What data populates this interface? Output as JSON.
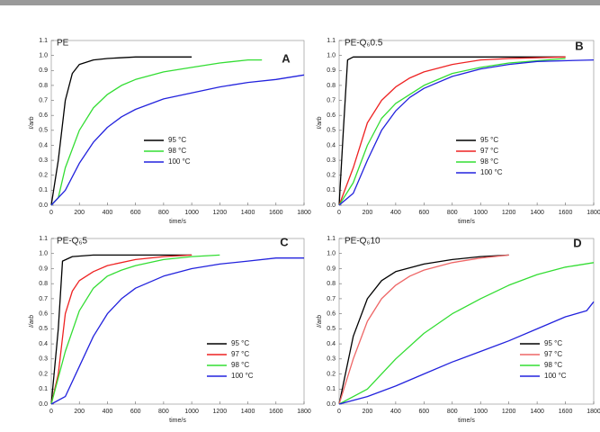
{
  "chart_data": [
    {
      "type": "line",
      "title": "PE",
      "panel_label": "A",
      "xlabel": "time/s",
      "ylabel": "I/arb",
      "xlim": [
        0,
        1800
      ],
      "xticks": [
        0,
        200,
        400,
        600,
        800,
        1000,
        1200,
        1400,
        1600,
        1800
      ],
      "ylim": [
        0,
        1.1
      ],
      "yticks": [
        {
          "value": 0,
          "label": "0.0"
        },
        0.1,
        0.2,
        0.3,
        0.4,
        0.5,
        0.6,
        0.7,
        0.8,
        0.9,
        {
          "value": 1,
          "label": "1.0"
        },
        1.1
      ],
      "series": [
        {
          "name": "95 °C",
          "color": "#000000",
          "x": [
            0,
            50,
            100,
            150,
            200,
            300,
            400,
            600,
            800,
            1000
          ],
          "values": [
            0,
            0.3,
            0.7,
            0.88,
            0.94,
            0.97,
            0.98,
            0.99,
            0.99,
            0.99
          ]
        },
        {
          "name": "98 °C",
          "color": "#33dd33",
          "x": [
            0,
            50,
            100,
            200,
            300,
            400,
            500,
            600,
            800,
            1000,
            1200,
            1400,
            1500
          ],
          "values": [
            0,
            0.05,
            0.25,
            0.5,
            0.65,
            0.74,
            0.8,
            0.84,
            0.89,
            0.92,
            0.95,
            0.97,
            0.97
          ]
        },
        {
          "name": "100 °C",
          "color": "#2222dd",
          "x": [
            0,
            100,
            200,
            300,
            400,
            500,
            600,
            800,
            1000,
            1200,
            1400,
            1600,
            1800
          ],
          "values": [
            0,
            0.1,
            0.28,
            0.42,
            0.52,
            0.59,
            0.64,
            0.71,
            0.75,
            0.79,
            0.82,
            0.84,
            0.87
          ]
        }
      ]
    },
    {
      "type": "line",
      "title": "PE-Q₆0.5",
      "panel_label": "B",
      "xlabel": "time/s",
      "ylabel": "I/arb",
      "xlim": [
        0,
        1800
      ],
      "xticks": [
        0,
        200,
        400,
        600,
        800,
        1000,
        1200,
        1400,
        1600,
        1800
      ],
      "ylim": [
        0,
        1.1
      ],
      "yticks": [
        {
          "value": 0,
          "label": "0.0"
        },
        0.1,
        0.2,
        0.3,
        0.4,
        0.5,
        0.6,
        0.7,
        0.8,
        0.9,
        {
          "value": 1,
          "label": "1.0"
        },
        1.1
      ],
      "series": [
        {
          "name": "95 °C",
          "color": "#000000",
          "x": [
            0,
            30,
            60,
            100,
            400,
            800,
            1200,
            1600
          ],
          "values": [
            0,
            0.5,
            0.97,
            0.99,
            0.99,
            0.99,
            0.99,
            0.99
          ]
        },
        {
          "name": "97 °C",
          "color": "#ee2222",
          "x": [
            0,
            100,
            200,
            300,
            400,
            500,
            600,
            800,
            1000,
            1200,
            1600
          ],
          "values": [
            0,
            0.25,
            0.55,
            0.7,
            0.79,
            0.85,
            0.89,
            0.94,
            0.97,
            0.98,
            0.99
          ]
        },
        {
          "name": "98 °C",
          "color": "#33dd33",
          "x": [
            0,
            100,
            200,
            300,
            400,
            600,
            800,
            1000,
            1200,
            1600
          ],
          "values": [
            0,
            0.15,
            0.4,
            0.58,
            0.68,
            0.8,
            0.88,
            0.92,
            0.95,
            0.98
          ]
        },
        {
          "name": "100 °C",
          "color": "#2222dd",
          "x": [
            0,
            100,
            200,
            300,
            400,
            500,
            600,
            800,
            1000,
            1200,
            1400,
            1800
          ],
          "values": [
            0,
            0.08,
            0.3,
            0.5,
            0.63,
            0.72,
            0.78,
            0.86,
            0.91,
            0.94,
            0.96,
            0.97
          ]
        }
      ]
    },
    {
      "type": "line",
      "title": "PE-Q₆5",
      "panel_label": "C",
      "xlabel": "time/s",
      "ylabel": "I/arb",
      "xlim": [
        0,
        1800
      ],
      "xticks": [
        0,
        200,
        400,
        600,
        800,
        1000,
        1200,
        1400,
        1600,
        1800
      ],
      "ylim": [
        0,
        1.1
      ],
      "yticks": [
        {
          "value": 0,
          "label": "0.0"
        },
        0.1,
        0.2,
        0.3,
        0.4,
        0.5,
        0.6,
        0.7,
        0.8,
        0.9,
        {
          "value": 1,
          "label": "1.0"
        },
        1.1
      ],
      "series": [
        {
          "name": "95 °C",
          "color": "#000000",
          "x": [
            0,
            50,
            80,
            150,
            300,
            1000
          ],
          "values": [
            0,
            0.5,
            0.95,
            0.98,
            0.99,
            0.99
          ]
        },
        {
          "name": "97 °C",
          "color": "#ee2222",
          "x": [
            0,
            50,
            100,
            150,
            200,
            300,
            400,
            600,
            800,
            1000
          ],
          "values": [
            0,
            0.2,
            0.6,
            0.75,
            0.82,
            0.88,
            0.92,
            0.96,
            0.98,
            0.99
          ]
        },
        {
          "name": "98 °C",
          "color": "#33dd33",
          "x": [
            0,
            100,
            200,
            300,
            400,
            500,
            600,
            800,
            1000,
            1200
          ],
          "values": [
            0,
            0.35,
            0.62,
            0.77,
            0.85,
            0.89,
            0.92,
            0.96,
            0.98,
            0.99
          ]
        },
        {
          "name": "100 °C",
          "color": "#2222dd",
          "x": [
            0,
            100,
            200,
            300,
            400,
            500,
            600,
            800,
            1000,
            1200,
            1400,
            1600,
            1800
          ],
          "values": [
            0,
            0.05,
            0.25,
            0.45,
            0.6,
            0.7,
            0.77,
            0.85,
            0.9,
            0.93,
            0.95,
            0.97,
            0.97
          ]
        }
      ]
    },
    {
      "type": "line",
      "title": "PE-Q₆10",
      "panel_label": "D",
      "xlabel": "time/s",
      "ylabel": "I/arb",
      "xlim": [
        0,
        1800
      ],
      "xticks": [
        0,
        200,
        400,
        600,
        800,
        1000,
        1200,
        1400,
        1600,
        1800
      ],
      "ylim": [
        0,
        1.1
      ],
      "yticks": [
        {
          "value": 0,
          "label": "0.0"
        },
        0.1,
        0.2,
        0.3,
        0.4,
        0.5,
        0.6,
        0.7,
        0.8,
        0.9,
        {
          "value": 1,
          "label": "1.0"
        },
        1.1
      ],
      "series": [
        {
          "name": "95 °C",
          "color": "#000000",
          "x": [
            0,
            100,
            200,
            300,
            400,
            600,
            800,
            1000,
            1200
          ],
          "values": [
            0,
            0.45,
            0.7,
            0.82,
            0.88,
            0.93,
            0.96,
            0.98,
            0.99
          ]
        },
        {
          "name": "97 °C",
          "color": "#ee6666",
          "x": [
            0,
            100,
            200,
            300,
            400,
            500,
            600,
            800,
            1000,
            1200
          ],
          "values": [
            0,
            0.3,
            0.55,
            0.7,
            0.79,
            0.85,
            0.89,
            0.94,
            0.97,
            0.99
          ]
        },
        {
          "name": "98 °C",
          "color": "#33dd33",
          "x": [
            0,
            200,
            400,
            600,
            800,
            1000,
            1200,
            1400,
            1600,
            1800
          ],
          "values": [
            0,
            0.1,
            0.3,
            0.47,
            0.6,
            0.7,
            0.79,
            0.86,
            0.91,
            0.94
          ]
        },
        {
          "name": "100 °C",
          "color": "#2222dd",
          "x": [
            0,
            200,
            400,
            600,
            800,
            1000,
            1200,
            1400,
            1600,
            1750,
            1800
          ],
          "values": [
            0,
            0.05,
            0.12,
            0.2,
            0.28,
            0.35,
            0.42,
            0.5,
            0.58,
            0.62,
            0.68
          ]
        }
      ]
    }
  ]
}
